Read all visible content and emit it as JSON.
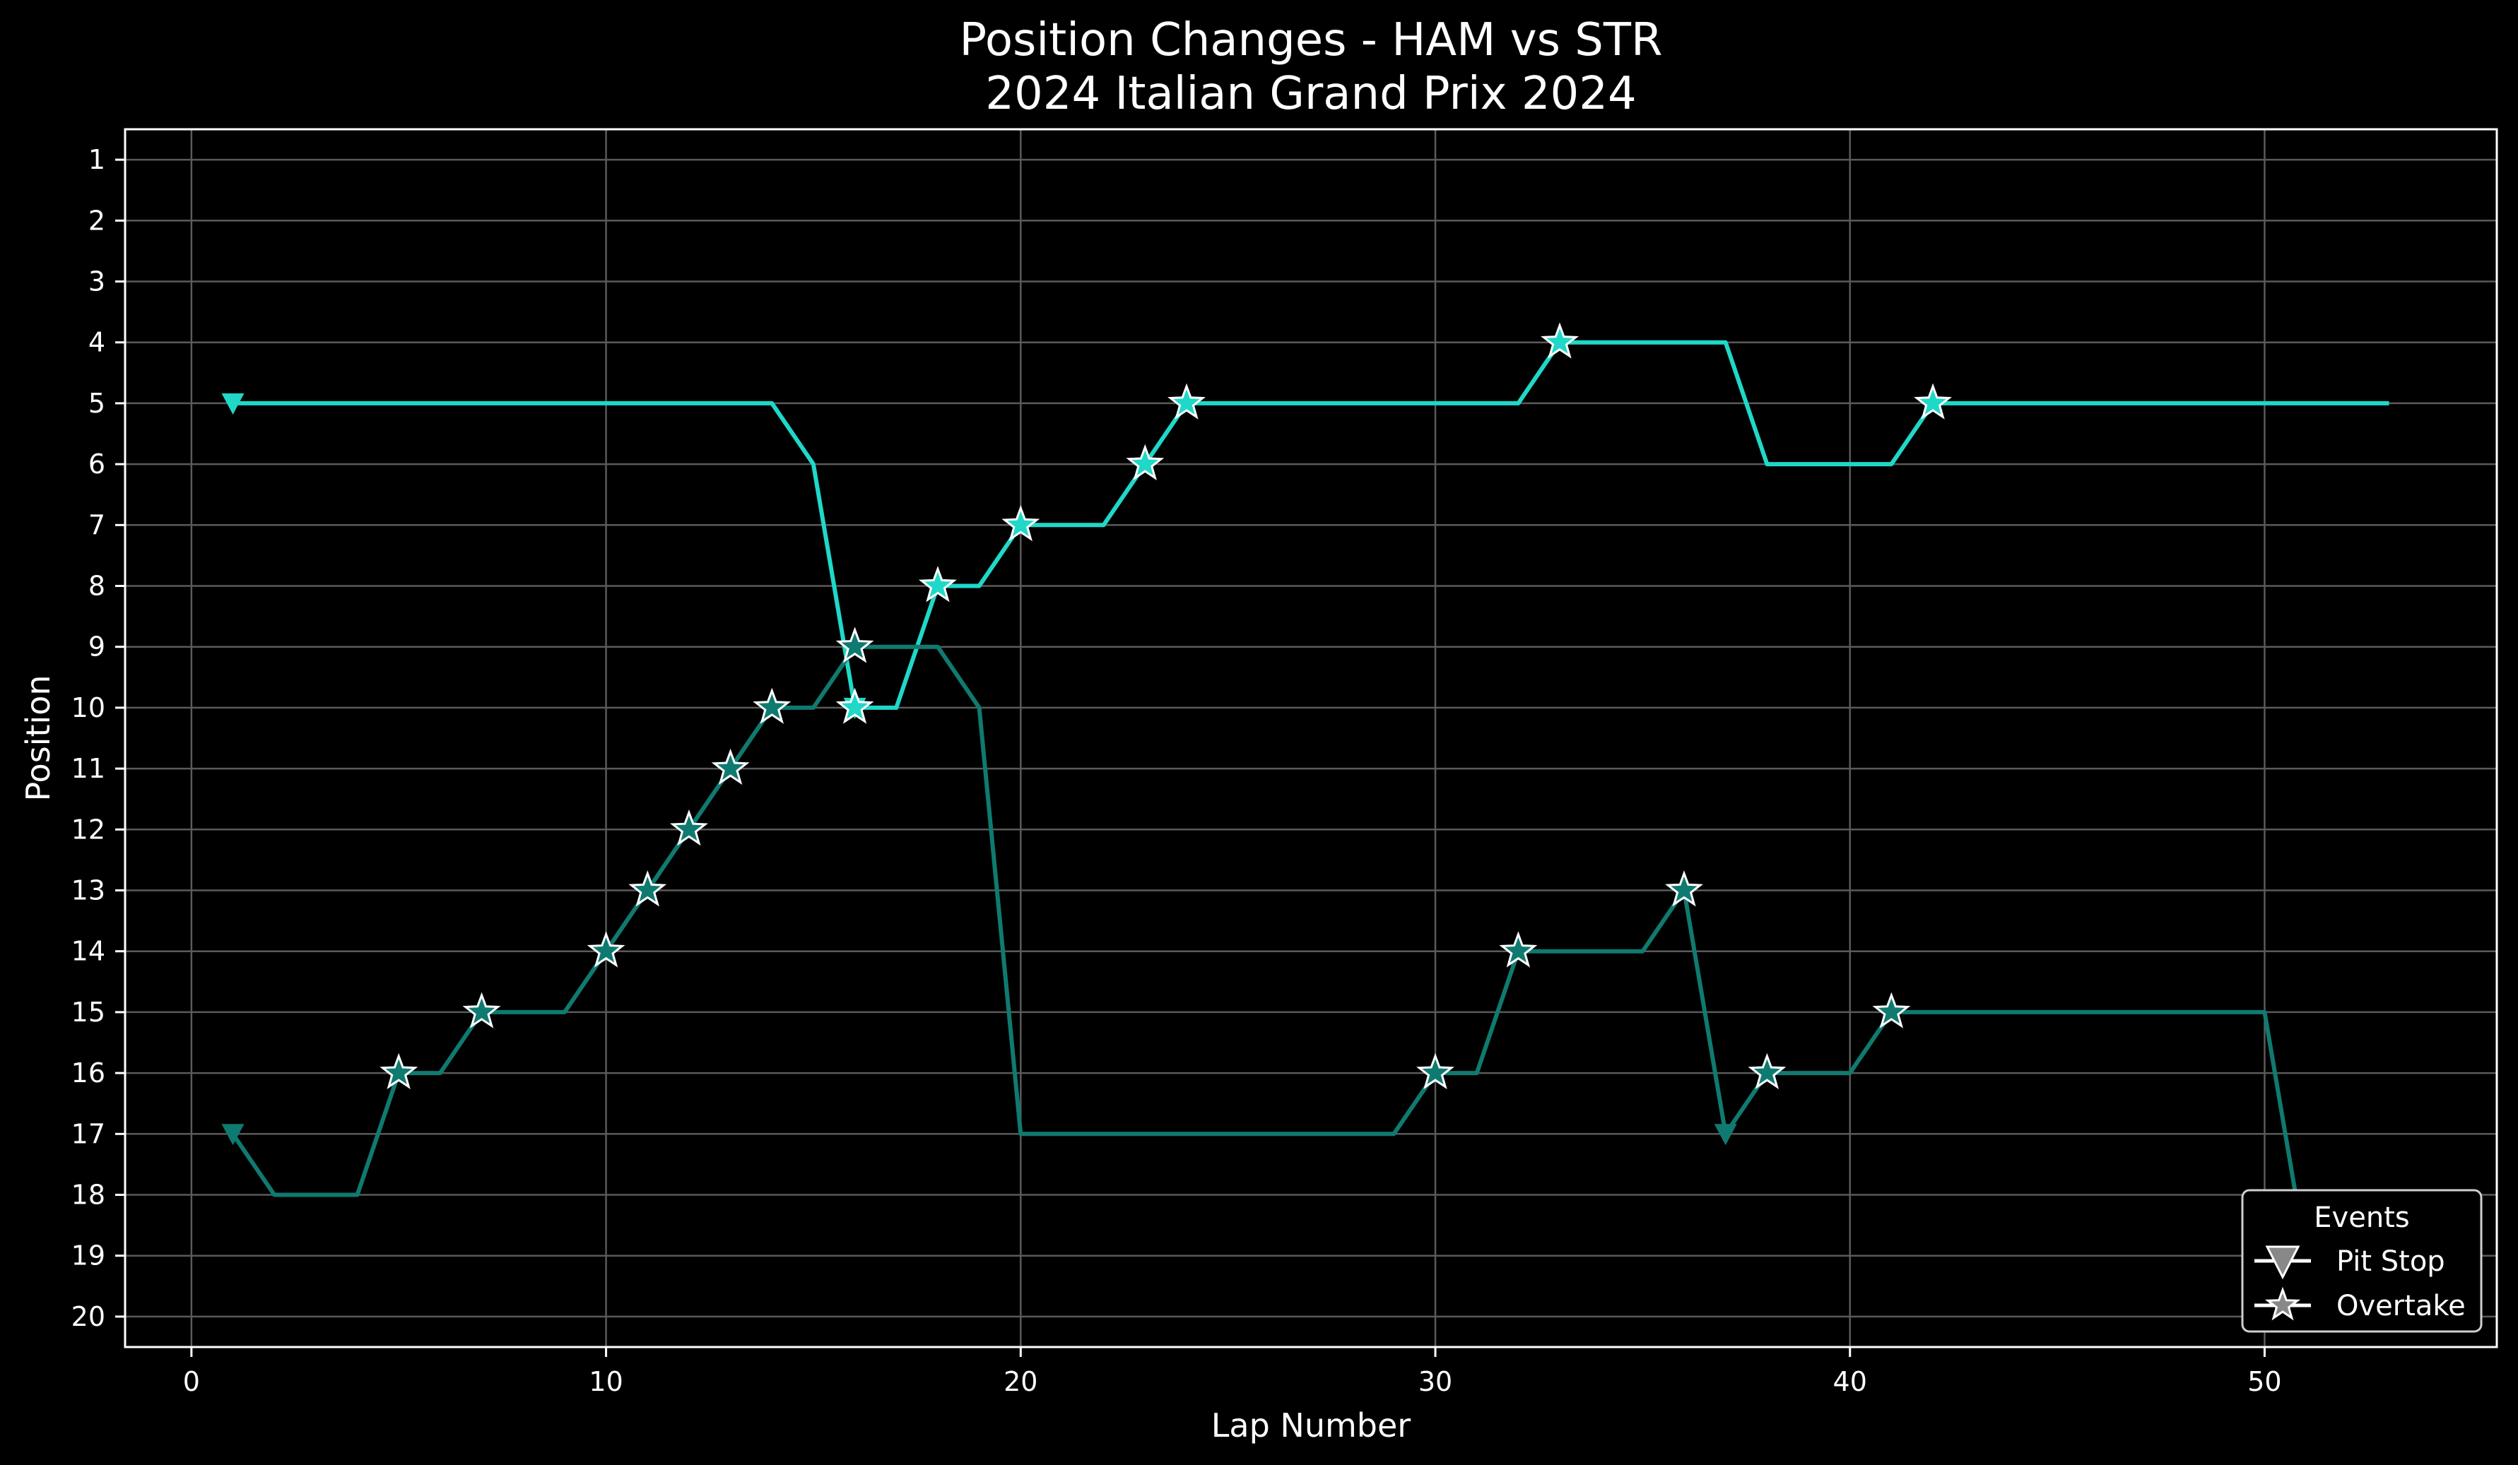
{
  "chart_data": {
    "type": "line",
    "title_line1": "Position Changes - HAM vs STR",
    "title_line2": "2024 Italian Grand Prix 2024",
    "xlabel": "Lap Number",
    "ylabel": "Position",
    "xlim": [
      -1.6,
      55.6
    ],
    "ylim": [
      20.5,
      0.5
    ],
    "y_inverted": true,
    "xticks": [
      0,
      10,
      20,
      30,
      40,
      50
    ],
    "yticks": [
      1,
      2,
      3,
      4,
      5,
      6,
      7,
      8,
      9,
      10,
      11,
      12,
      13,
      14,
      15,
      16,
      17,
      18,
      19,
      20
    ],
    "grid": true,
    "legend": {
      "title": "Events",
      "position": "bottom-right",
      "entries": [
        {
          "label": "Pit Stop",
          "marker": "triangle-down"
        },
        {
          "label": "Overtake",
          "marker": "star"
        }
      ]
    },
    "series": [
      {
        "color": "#1fd8c8",
        "laps": [
          1,
          2,
          3,
          4,
          5,
          6,
          7,
          8,
          9,
          10,
          11,
          12,
          13,
          14,
          15,
          16,
          17,
          18,
          19,
          20,
          21,
          22,
          23,
          24,
          25,
          26,
          27,
          28,
          29,
          30,
          31,
          32,
          33,
          34,
          35,
          36,
          37,
          38,
          39,
          40,
          41,
          42,
          43,
          44,
          45,
          46,
          47,
          48,
          49,
          50,
          51,
          52,
          53
        ],
        "positions": [
          5,
          5,
          5,
          5,
          5,
          5,
          5,
          5,
          5,
          5,
          5,
          5,
          5,
          5,
          6,
          10,
          10,
          8,
          8,
          7,
          7,
          7,
          6,
          5,
          5,
          5,
          5,
          5,
          5,
          5,
          5,
          5,
          4,
          4,
          4,
          4,
          4,
          6,
          6,
          6,
          6,
          5,
          5,
          5,
          5,
          5,
          5,
          5,
          5,
          5,
          5,
          5,
          5
        ],
        "pit_stops": [
          1,
          16
        ],
        "overtakes": [
          16,
          18,
          20,
          23,
          24,
          33,
          42
        ]
      },
      {
        "color": "#0f7a70",
        "laps": [
          1,
          2,
          3,
          4,
          5,
          6,
          7,
          8,
          9,
          10,
          11,
          12,
          13,
          14,
          15,
          16,
          17,
          18,
          19,
          20,
          21,
          22,
          23,
          24,
          25,
          26,
          27,
          28,
          29,
          30,
          31,
          32,
          33,
          34,
          35,
          36,
          37,
          38,
          39,
          40,
          41,
          42,
          43,
          44,
          45,
          46,
          47,
          48,
          49,
          50,
          51
        ],
        "positions": [
          17,
          18,
          18,
          18,
          16,
          16,
          15,
          15,
          15,
          14,
          13,
          12,
          11,
          10,
          10,
          9,
          9,
          9,
          10,
          17,
          17,
          17,
          17,
          17,
          17,
          17,
          17,
          17,
          17,
          16,
          16,
          14,
          14,
          14,
          14,
          13,
          17,
          16,
          16,
          16,
          15,
          15,
          15,
          15,
          15,
          15,
          15,
          15,
          15,
          15,
          19
        ],
        "pit_stops": [
          1,
          37
        ],
        "overtakes": [
          5,
          7,
          10,
          11,
          12,
          13,
          14,
          16,
          30,
          32,
          36,
          38,
          41
        ]
      }
    ]
  },
  "colors": {
    "background": "#000000",
    "grid": "#5a5a5a",
    "axes": "#ffffff",
    "marker_edge": "#ffffff",
    "legend_bg": "#000000"
  }
}
